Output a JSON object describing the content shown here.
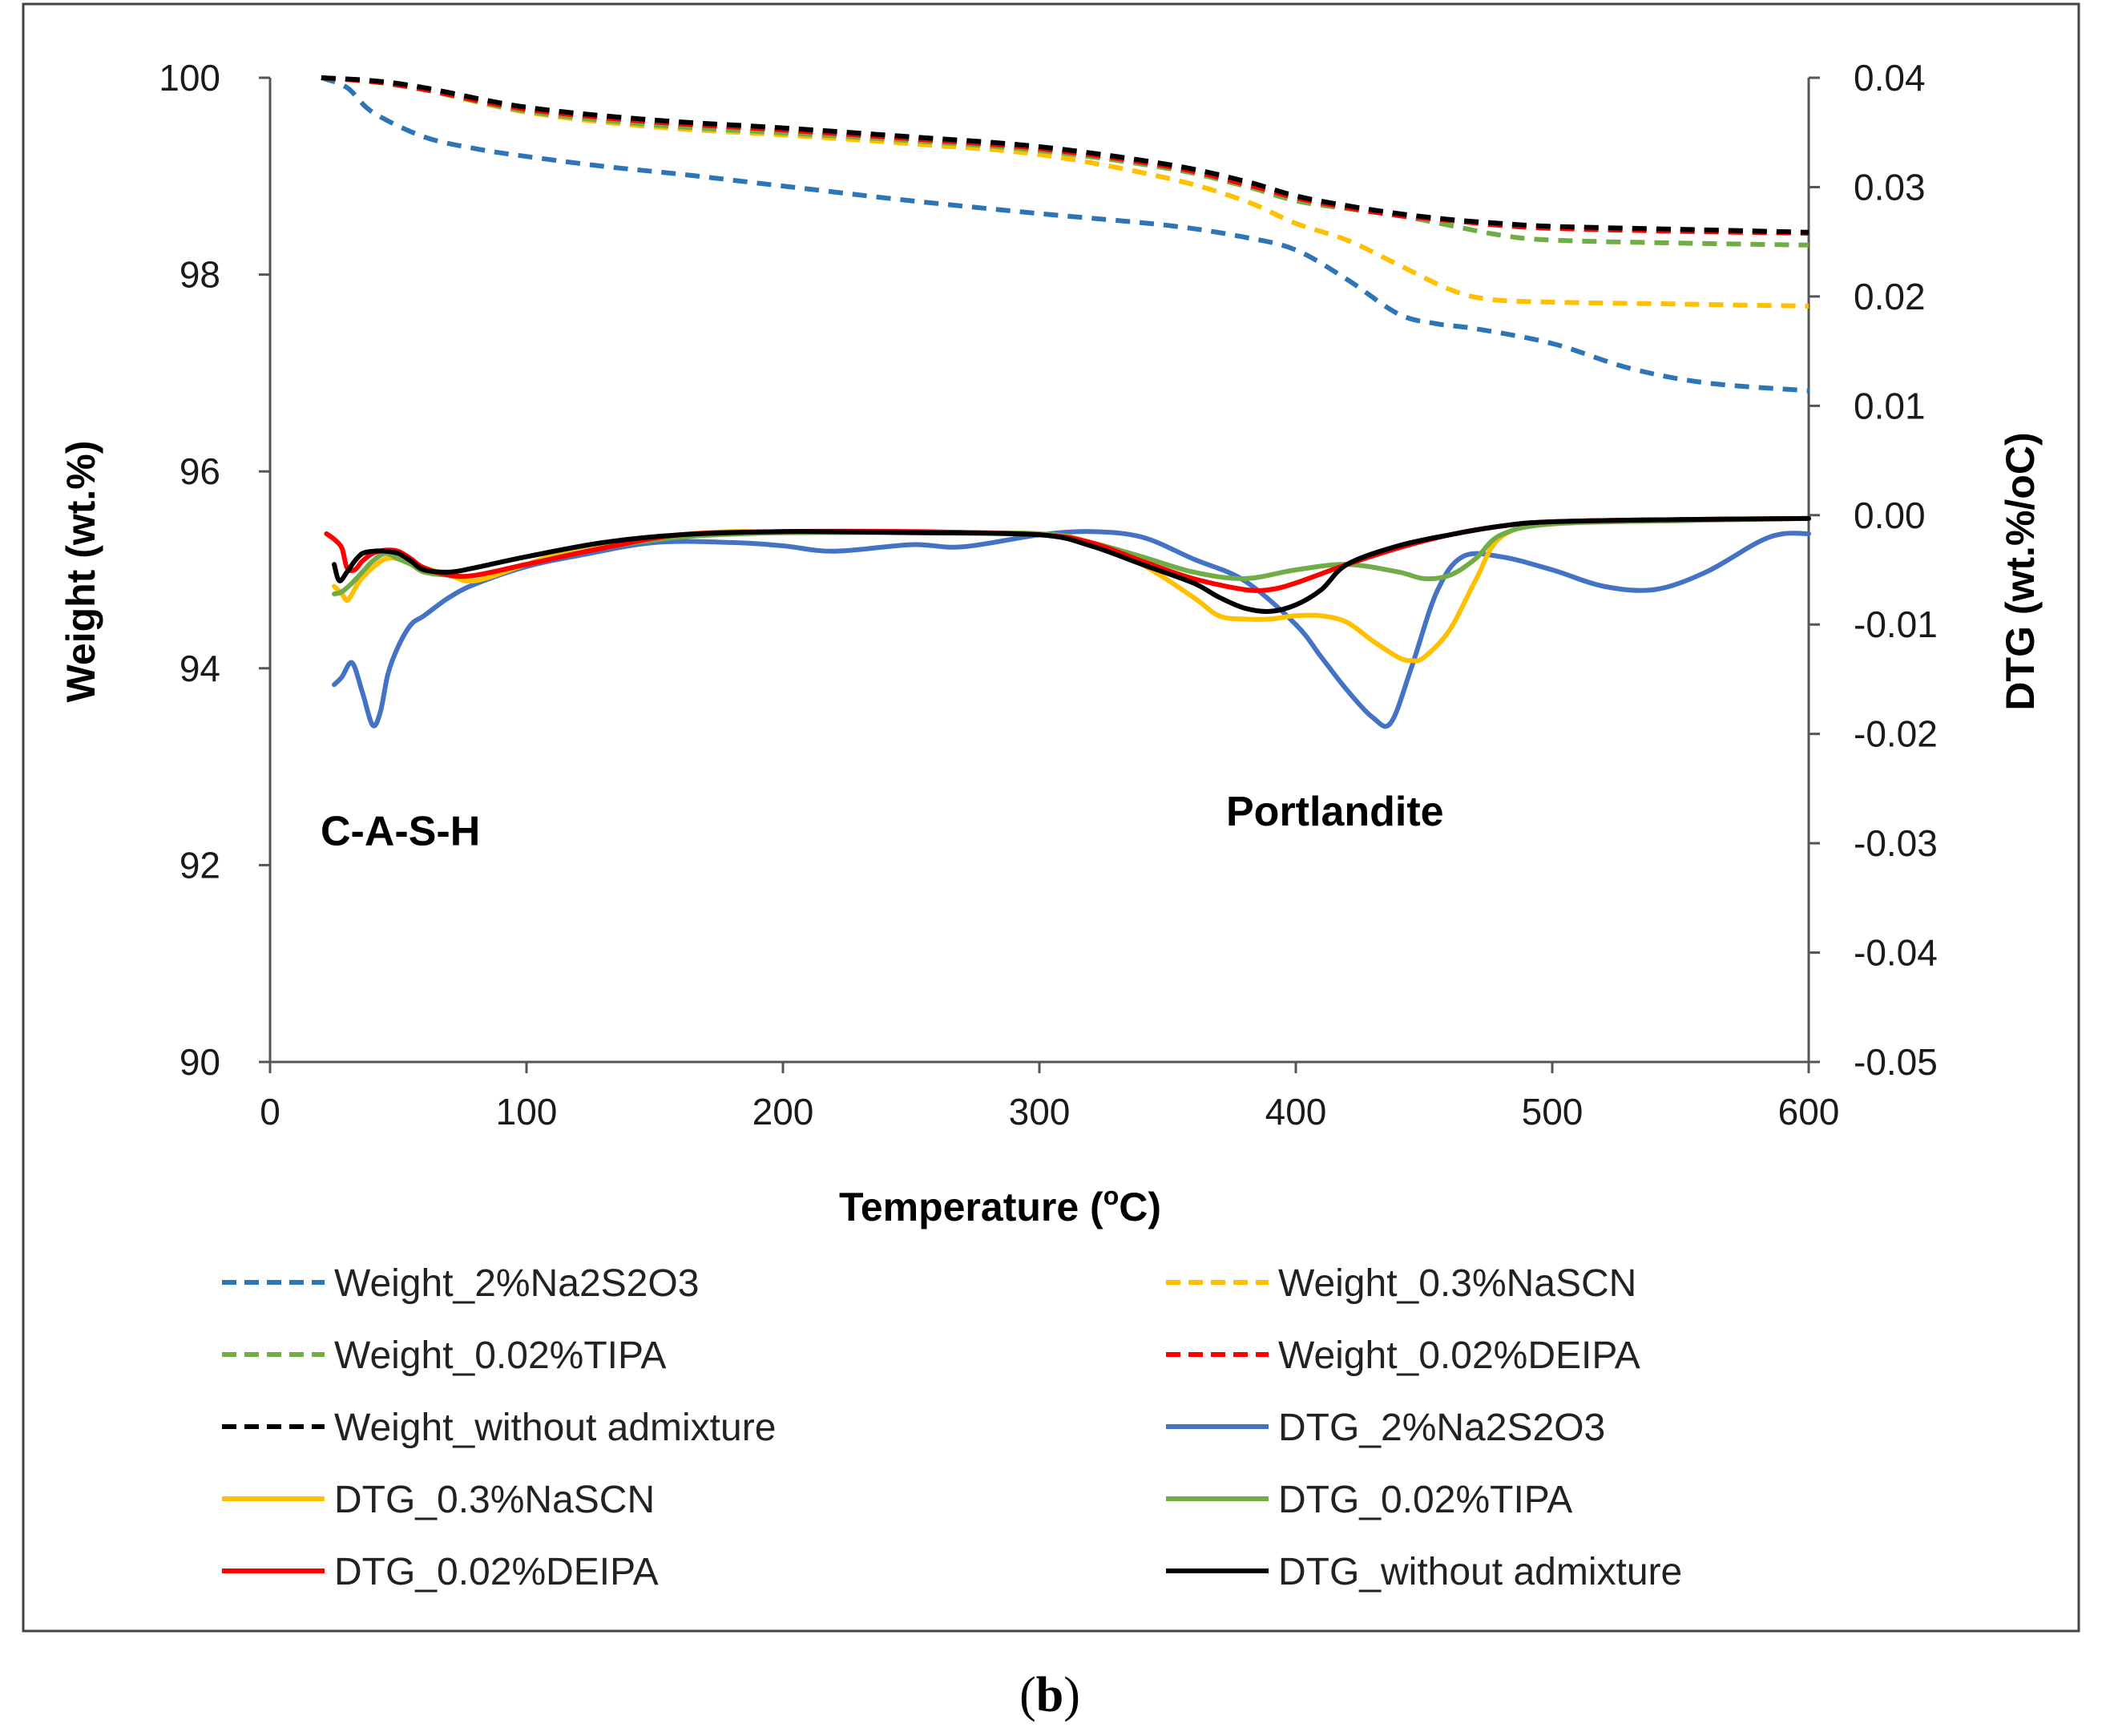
{
  "chart_data": {
    "type": "line",
    "xlabel": "Temperature (",
    "xlabel_sup": "o",
    "xlabel_end": "C)",
    "ylabel_left": "Weight (wt.%)",
    "ylabel_right": "DTG (wt.%/oC)",
    "xlim": [
      0,
      600
    ],
    "ylim_left": [
      90,
      100
    ],
    "ylim_right": [
      -0.05,
      0.04
    ],
    "x_ticks": [
      "0",
      "100",
      "200",
      "300",
      "400",
      "500",
      "600"
    ],
    "x_tick_values": [
      0,
      100,
      200,
      300,
      400,
      500,
      600
    ],
    "y_left_ticks": [
      "90",
      "92",
      "94",
      "96",
      "98",
      "100"
    ],
    "y_left_tick_values": [
      90,
      92,
      94,
      96,
      98,
      100
    ],
    "y_right_ticks": [
      "-0.05",
      "-0.04",
      "-0.03",
      "-0.02",
      "-0.01",
      "0.00",
      "0.01",
      "0.02",
      "0.03",
      "0.04"
    ],
    "y_right_tick_values": [
      -0.05,
      -0.04,
      -0.03,
      -0.02,
      -0.01,
      0.0,
      0.01,
      0.02,
      0.03,
      0.04
    ],
    "annotations": [
      {
        "text": "C-A-S-H",
        "x": 0,
        "y": 92.35,
        "axis": "left"
      },
      {
        "text": "Portlandite",
        "x": 370,
        "y": 92.55,
        "axis": "left"
      }
    ],
    "series": [
      {
        "name": "Weight_2%Na2S2O3",
        "axis": "left",
        "style": "dashed",
        "color": "#2E75B6",
        "x": [
          20,
          30,
          40,
          60,
          80,
          100,
          130,
          160,
          200,
          250,
          300,
          350,
          380,
          400,
          420,
          440,
          455,
          470,
          500,
          530,
          560,
          600
        ],
        "y": [
          100.0,
          99.9,
          99.65,
          99.4,
          99.28,
          99.2,
          99.1,
          99.02,
          98.9,
          98.75,
          98.62,
          98.5,
          98.38,
          98.25,
          97.95,
          97.6,
          97.5,
          97.45,
          97.3,
          97.05,
          96.9,
          96.82
        ]
      },
      {
        "name": "Weight_0.3%NaSCN",
        "axis": "left",
        "style": "dashed",
        "color": "#FFC000",
        "x": [
          20,
          40,
          60,
          100,
          150,
          200,
          250,
          300,
          350,
          380,
          400,
          420,
          440,
          460,
          475,
          500,
          550,
          600
        ],
        "y": [
          100.0,
          99.96,
          99.88,
          99.65,
          99.5,
          99.42,
          99.33,
          99.22,
          98.98,
          98.75,
          98.52,
          98.35,
          98.1,
          97.85,
          97.75,
          97.72,
          97.7,
          97.68
        ]
      },
      {
        "name": "Weight_0.02%TIPA",
        "axis": "left",
        "style": "dashed",
        "color": "#70AD47",
        "x": [
          20,
          40,
          60,
          100,
          150,
          200,
          250,
          300,
          350,
          380,
          400,
          420,
          440,
          460,
          480,
          500,
          550,
          600
        ],
        "y": [
          100.0,
          99.96,
          99.88,
          99.66,
          99.52,
          99.44,
          99.36,
          99.26,
          99.08,
          98.9,
          98.75,
          98.67,
          98.6,
          98.5,
          98.4,
          98.35,
          98.32,
          98.3
        ]
      },
      {
        "name": "Weight_0.02%DEIPA",
        "axis": "left",
        "style": "dashed",
        "color": "#FF0000",
        "x": [
          20,
          40,
          60,
          100,
          150,
          200,
          250,
          300,
          350,
          380,
          400,
          420,
          440,
          460,
          480,
          500,
          550,
          600
        ],
        "y": [
          100.0,
          99.96,
          99.88,
          99.68,
          99.55,
          99.47,
          99.38,
          99.28,
          99.1,
          98.92,
          98.78,
          98.68,
          98.6,
          98.55,
          98.5,
          98.47,
          98.44,
          98.42
        ]
      },
      {
        "name": "Weight_without admixture",
        "axis": "left",
        "style": "dashed",
        "color": "#000000",
        "x": [
          20,
          40,
          60,
          100,
          150,
          200,
          250,
          300,
          350,
          380,
          400,
          420,
          440,
          460,
          480,
          500,
          550,
          600
        ],
        "y": [
          100.0,
          99.97,
          99.9,
          99.7,
          99.57,
          99.49,
          99.4,
          99.3,
          99.12,
          98.95,
          98.8,
          98.7,
          98.62,
          98.56,
          98.52,
          98.49,
          98.46,
          98.43
        ]
      },
      {
        "name": "DTG_2%Na2S2O3",
        "axis": "right",
        "style": "solid",
        "color": "#4472C4",
        "x": [
          25,
          28,
          32,
          36,
          40,
          43,
          46,
          50,
          55,
          60,
          70,
          80,
          100,
          120,
          150,
          180,
          200,
          220,
          250,
          270,
          300,
          320,
          340,
          360,
          380,
          400,
          410,
          420,
          430,
          437,
          445,
          455,
          465,
          480,
          500,
          520,
          540,
          560,
          580,
          590,
          600
        ],
        "y": [
          -0.0155,
          -0.0148,
          -0.0135,
          -0.0162,
          -0.0192,
          -0.018,
          -0.0145,
          -0.012,
          -0.01,
          -0.0092,
          -0.0075,
          -0.0063,
          -0.0047,
          -0.0037,
          -0.0025,
          -0.0025,
          -0.0028,
          -0.0033,
          -0.0027,
          -0.0029,
          -0.0018,
          -0.0015,
          -0.002,
          -0.004,
          -0.006,
          -0.01,
          -0.013,
          -0.016,
          -0.0185,
          -0.019,
          -0.014,
          -0.007,
          -0.0038,
          -0.0038,
          -0.005,
          -0.0065,
          -0.0068,
          -0.0052,
          -0.0025,
          -0.0017,
          -0.0017
        ]
      },
      {
        "name": "DTG_0.3%NaSCN",
        "axis": "right",
        "style": "solid",
        "color": "#FFC000",
        "x": [
          25,
          28,
          30,
          32,
          35,
          40,
          45,
          50,
          60,
          70,
          80,
          100,
          120,
          150,
          180,
          200,
          250,
          300,
          320,
          340,
          360,
          370,
          380,
          390,
          400,
          410,
          420,
          430,
          440,
          445,
          450,
          460,
          470,
          480,
          500,
          550,
          600
        ],
        "y": [
          -0.0065,
          -0.0072,
          -0.0078,
          -0.0072,
          -0.006,
          -0.0048,
          -0.004,
          -0.004,
          -0.0048,
          -0.0055,
          -0.006,
          -0.0045,
          -0.003,
          -0.002,
          -0.0015,
          -0.0016,
          -0.0016,
          -0.0017,
          -0.0025,
          -0.0045,
          -0.0075,
          -0.0092,
          -0.0095,
          -0.0095,
          -0.0092,
          -0.0092,
          -0.0098,
          -0.0115,
          -0.013,
          -0.0133,
          -0.013,
          -0.0105,
          -0.006,
          -0.002,
          -0.0007,
          -0.0004,
          -0.0003
        ]
      },
      {
        "name": "DTG_0.02%TIPA",
        "axis": "right",
        "style": "solid",
        "color": "#70AD47",
        "x": [
          25,
          28,
          32,
          36,
          40,
          45,
          50,
          55,
          60,
          70,
          80,
          100,
          130,
          160,
          200,
          250,
          300,
          320,
          340,
          360,
          380,
          400,
          420,
          440,
          450,
          460,
          470,
          480,
          500,
          550,
          600
        ],
        "y": [
          -0.0072,
          -0.007,
          -0.0062,
          -0.0052,
          -0.0042,
          -0.0035,
          -0.004,
          -0.0045,
          -0.0052,
          -0.0055,
          -0.0055,
          -0.0045,
          -0.003,
          -0.002,
          -0.0016,
          -0.0016,
          -0.0017,
          -0.0025,
          -0.0038,
          -0.0052,
          -0.0058,
          -0.005,
          -0.0045,
          -0.0052,
          -0.0058,
          -0.0055,
          -0.004,
          -0.0018,
          -0.0008,
          -0.0005,
          -0.0003
        ]
      },
      {
        "name": "DTG_0.02%DEIPA",
        "axis": "right",
        "style": "solid",
        "color": "#FF0000",
        "x": [
          22,
          25,
          28,
          30,
          33,
          36,
          40,
          45,
          50,
          55,
          60,
          70,
          80,
          100,
          130,
          160,
          200,
          250,
          300,
          320,
          340,
          360,
          380,
          390,
          400,
          420,
          440,
          460,
          480,
          500,
          550,
          600
        ],
        "y": [
          -0.0017,
          -0.0022,
          -0.003,
          -0.0048,
          -0.005,
          -0.0042,
          -0.0035,
          -0.0032,
          -0.0033,
          -0.004,
          -0.0048,
          -0.0055,
          -0.0055,
          -0.0045,
          -0.003,
          -0.0018,
          -0.0015,
          -0.0015,
          -0.0018,
          -0.0025,
          -0.0042,
          -0.0058,
          -0.0068,
          -0.0068,
          -0.0062,
          -0.0045,
          -0.003,
          -0.0018,
          -0.001,
          -0.0006,
          -0.0004,
          -0.0003
        ]
      },
      {
        "name": "DTG_without admixture",
        "axis": "right",
        "style": "solid",
        "color": "#000000",
        "x": [
          25,
          27,
          30,
          33,
          36,
          40,
          45,
          50,
          55,
          60,
          70,
          80,
          100,
          130,
          160,
          200,
          250,
          300,
          320,
          340,
          360,
          370,
          380,
          390,
          400,
          410,
          420,
          440,
          460,
          480,
          500,
          550,
          600
        ],
        "y": [
          -0.0045,
          -0.006,
          -0.0052,
          -0.0042,
          -0.0035,
          -0.0033,
          -0.0033,
          -0.0035,
          -0.0042,
          -0.005,
          -0.0052,
          -0.0048,
          -0.0038,
          -0.0025,
          -0.0018,
          -0.0015,
          -0.0016,
          -0.0018,
          -0.0028,
          -0.0045,
          -0.0062,
          -0.0075,
          -0.0085,
          -0.0088,
          -0.0082,
          -0.0068,
          -0.0045,
          -0.0028,
          -0.0018,
          -0.001,
          -0.0006,
          -0.0004,
          -0.0003
        ]
      }
    ]
  },
  "caption": {
    "open": "(",
    "letter": "b",
    "close": ")"
  }
}
